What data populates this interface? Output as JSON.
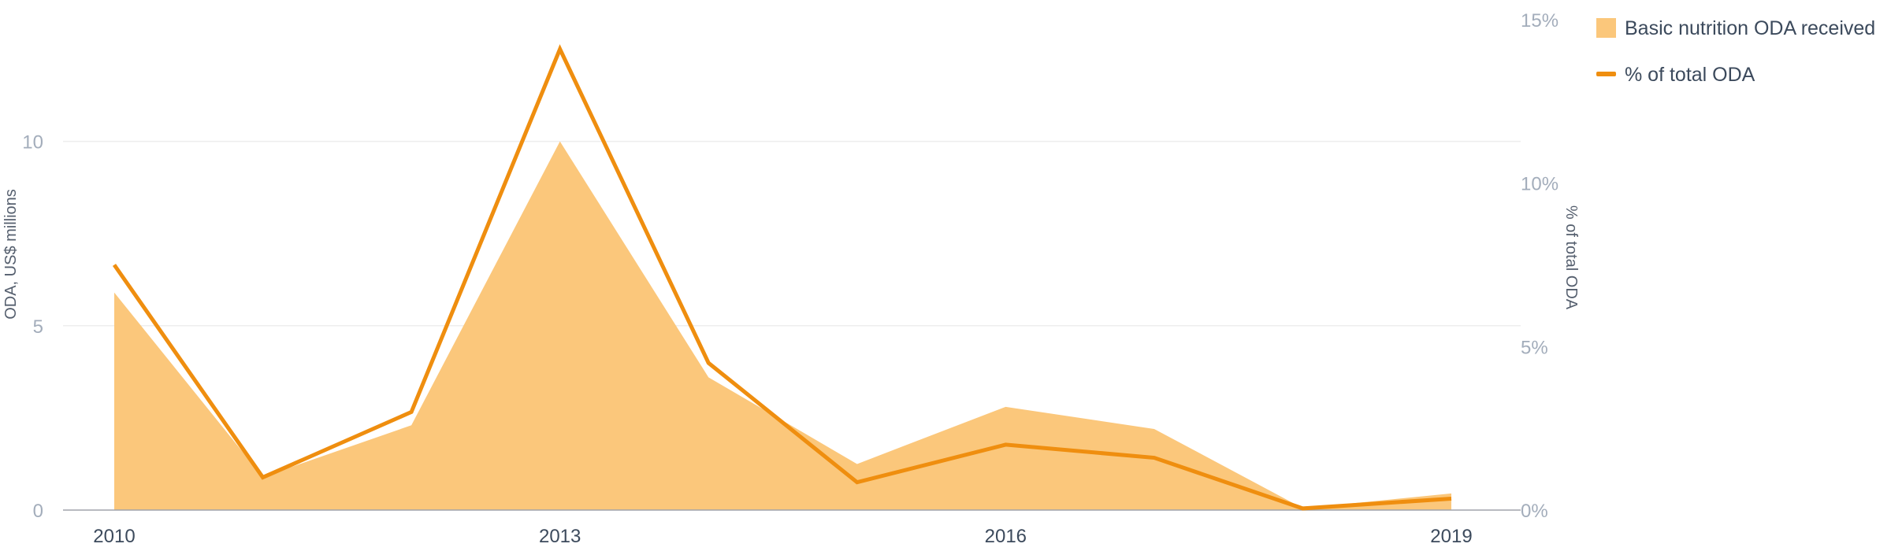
{
  "chart_data": {
    "type": "area+line",
    "x": [
      2010,
      2011,
      2012,
      2013,
      2014,
      2015,
      2016,
      2017,
      2018,
      2019
    ],
    "x_ticks": [
      "2010",
      "2013",
      "2016",
      "2019"
    ],
    "series": [
      {
        "name": "Basic nutrition ODA received",
        "kind": "area",
        "axis": "left",
        "values": [
          5.9,
          0.9,
          2.3,
          10.0,
          3.6,
          1.25,
          2.8,
          2.2,
          0.05,
          0.45
        ]
      },
      {
        "name": "% of total ODA",
        "kind": "line",
        "axis": "right",
        "values": [
          7.5,
          1.0,
          3.0,
          14.1,
          4.5,
          0.85,
          2.0,
          1.6,
          0.05,
          0.35
        ]
      }
    ],
    "left_axis": {
      "label": "ODA, US$ millions",
      "ylim": [
        0,
        13.3
      ],
      "ticks": [
        "0",
        "5",
        "10"
      ],
      "tick_values": [
        0,
        5,
        10
      ]
    },
    "right_axis": {
      "label": "% of total ODA",
      "ylim": [
        0,
        15
      ],
      "ticks": [
        "0%",
        "5%",
        "10%",
        "15%"
      ],
      "tick_values": [
        0,
        5,
        10,
        15
      ]
    },
    "grid": "horizontal",
    "legend_position": "top-right",
    "colors": {
      "area": "#fbc77b",
      "line": "#ef8e0f",
      "tick_text": "#a3adbb",
      "x_tick_text": "#3c4a5c",
      "gridline": "#eeeeee",
      "baseline": "#a0a4ab"
    }
  }
}
